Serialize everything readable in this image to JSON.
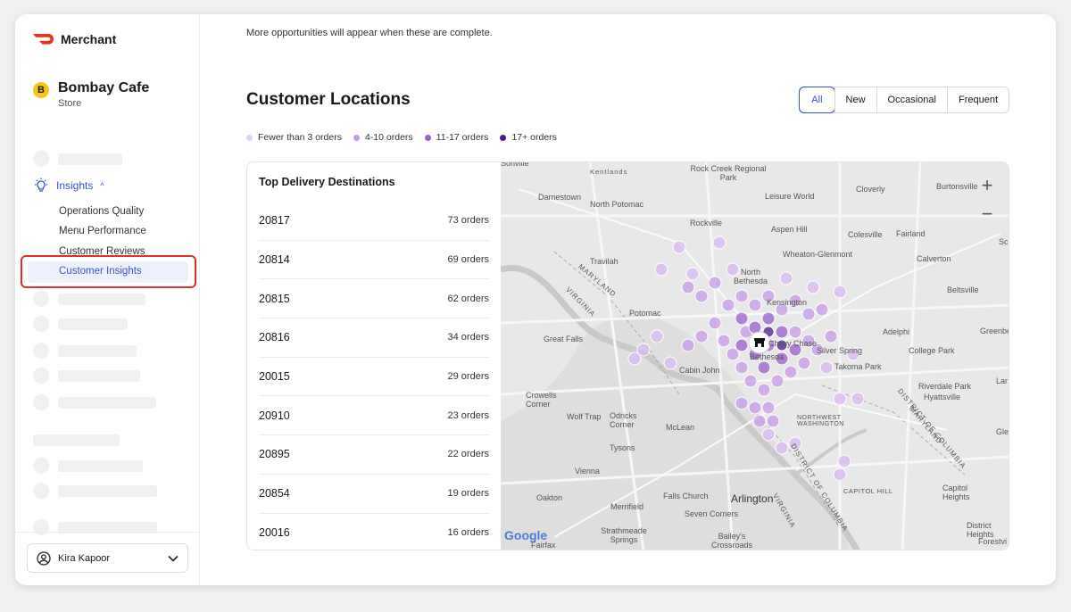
{
  "brand": {
    "name": "Merchant"
  },
  "store": {
    "initial": "B",
    "name": "Bombay Cafe",
    "type": "Store"
  },
  "nav": {
    "insights_label": "Insights",
    "submenu": [
      "Operations Quality",
      "Menu Performance",
      "Customer Reviews",
      "Customer Insights"
    ]
  },
  "user": {
    "name": "Kira Kapoor"
  },
  "main": {
    "note": "More opportunities will appear when these are complete.",
    "title": "Customer Locations",
    "filters": [
      "All",
      "New",
      "Occasional",
      "Frequent"
    ],
    "selected_filter": "All",
    "legend": [
      {
        "label": "Fewer than 3 orders",
        "color": "#e2cdf7"
      },
      {
        "label": "4-10 orders",
        "color": "#c79ae8"
      },
      {
        "label": "11-17 orders",
        "color": "#9b5fd0"
      },
      {
        "label": "17+ orders",
        "color": "#4c1a8a"
      }
    ]
  },
  "destinations": {
    "title": "Top Delivery Destinations",
    "rows": [
      {
        "zip": "20817",
        "orders": "73 orders"
      },
      {
        "zip": "20814",
        "orders": "69 orders"
      },
      {
        "zip": "20815",
        "orders": "62 orders"
      },
      {
        "zip": "20816",
        "orders": "34 orders"
      },
      {
        "zip": "20015",
        "orders": "29 orders"
      },
      {
        "zip": "20910",
        "orders": "23 orders"
      },
      {
        "zip": "20895",
        "orders": "22 orders"
      },
      {
        "zip": "20854",
        "orders": "19 orders"
      },
      {
        "zip": "20016",
        "orders": "16 orders"
      }
    ]
  },
  "map": {
    "place_labels": [
      "Kentlands",
      "Rock Creek Regional Park",
      "Darnestown",
      "North Potomac",
      "Leisure World",
      "Cloverly",
      "Burtonsville",
      "Rockville",
      "Aspen Hill",
      "Colesville",
      "Fairland",
      "Wheaton-Glenmont",
      "Calverton",
      "Travilah",
      "North Bethesda",
      "Beltsville",
      "Kensington",
      "Potomac",
      "Adelphi",
      "Great Falls",
      "Chevy Chase",
      "Silver Spring",
      "College Park",
      "Bethesda",
      "Takoma Park",
      "Cabin John",
      "Riverdale Park",
      "Hyattsville",
      "Crowells Corner",
      "Wolf Trap",
      "Odricks Corner",
      "McLean",
      "Northwest Washington",
      "Tysons",
      "Vienna",
      "Capitol Hill",
      "Capitol Heights",
      "Oakton",
      "Falls Church",
      "Arlington",
      "Merrifield",
      "Seven Corners",
      "Strathmeade Springs",
      "Bailey's Crossroads",
      "Fairfax",
      "District Heights",
      "Maryland",
      "Virginia",
      "District of Columbia",
      "Forestvi",
      "Greenbe",
      "Lar",
      "Glei",
      "Sc"
    ],
    "attribution": "Google",
    "zoom_in": "+",
    "zoom_out": "−"
  }
}
